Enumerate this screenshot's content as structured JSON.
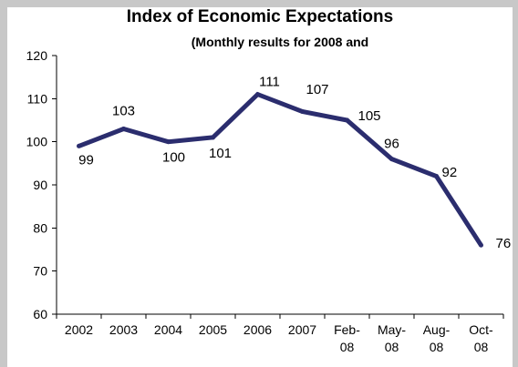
{
  "colors": {
    "frame": "#c8c8c8",
    "background": "#ffffff",
    "series": "#2b2d6e",
    "text": "#000000"
  },
  "chart_data": {
    "type": "line",
    "title": "Index of Economic Expectations",
    "subtitle": "(Monthly results for 2008 and",
    "xlabel": "",
    "ylabel": "",
    "categories": [
      [
        "2002"
      ],
      [
        "2003"
      ],
      [
        "2004"
      ],
      [
        "2005"
      ],
      [
        "2006"
      ],
      [
        "2007"
      ],
      [
        "Feb-",
        "08"
      ],
      [
        "May-",
        "08"
      ],
      [
        "Aug-",
        "08"
      ],
      [
        "Oct-",
        "08"
      ]
    ],
    "series": [
      {
        "values": [
          99,
          103,
          100,
          101,
          111,
          107,
          105,
          96,
          92,
          76
        ],
        "labels": [
          "99",
          "103",
          "100",
          "101",
          "111",
          "107",
          "105",
          "96",
          "92",
          "76"
        ]
      }
    ],
    "ylim": [
      60,
      120
    ],
    "yticks": [
      60,
      70,
      80,
      90,
      100,
      110,
      120
    ],
    "ytick_labels": [
      "60",
      "70",
      "80",
      "90",
      "100",
      "110",
      "120"
    ],
    "grid": false,
    "legend": "none"
  }
}
